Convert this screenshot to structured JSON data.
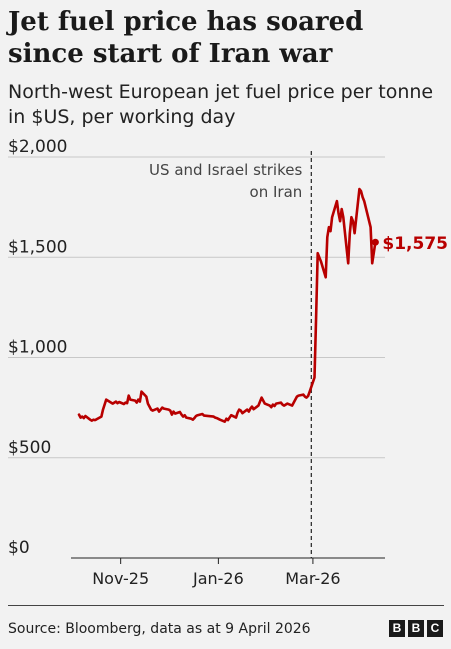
{
  "header": {
    "title": "Jet fuel price has soared since start of Iran war",
    "subtitle": "North-west European jet fuel price per tonne in $US, per working day"
  },
  "footer": {
    "source": "Source: Bloomberg, data as at 9 April 2026",
    "logo_letters": [
      "B",
      "B",
      "C"
    ]
  },
  "colors": {
    "line": "#b80000",
    "text": "#222222",
    "background": "#f2f2f2"
  },
  "chart_data": {
    "type": "line",
    "title": "Jet fuel price has soared since start of Iran war",
    "subtitle": "North-west European jet fuel price per tonne in $US, per working day",
    "ylim": [
      0,
      2000
    ],
    "y_ticks": [
      {
        "value": 0,
        "label": "$0"
      },
      {
        "value": 500,
        "label": "$500"
      },
      {
        "value": 1000,
        "label": "$1,000"
      },
      {
        "value": 1500,
        "label": "$1,500"
      },
      {
        "value": 2000,
        "label": "$2,000"
      }
    ],
    "x_ticks": [
      {
        "date": "2025-11-01",
        "label": "Nov-25"
      },
      {
        "date": "2026-01-01",
        "label": "Jan-26"
      },
      {
        "date": "2026-03-01",
        "label": "Mar-26"
      }
    ],
    "xlim": [
      "2025-10-01",
      "2026-04-15"
    ],
    "grid": "horizontal",
    "annotation": {
      "date": "2026-02-28",
      "text_lines": [
        "US and Israel strikes",
        "on Iran"
      ]
    },
    "last_value": {
      "date": "2026-04-09",
      "value": 1575,
      "label": "$1,575"
    },
    "series": [
      {
        "points": [
          [
            "2025-10-06",
            715
          ],
          [
            "2025-10-07",
            700
          ],
          [
            "2025-10-08",
            705
          ],
          [
            "2025-10-09",
            698
          ],
          [
            "2025-10-10",
            708
          ],
          [
            "2025-10-13",
            690
          ],
          [
            "2025-10-14",
            685
          ],
          [
            "2025-10-15",
            690
          ],
          [
            "2025-10-16",
            688
          ],
          [
            "2025-10-17",
            692
          ],
          [
            "2025-10-20",
            705
          ],
          [
            "2025-10-21",
            740
          ],
          [
            "2025-10-22",
            765
          ],
          [
            "2025-10-23",
            790
          ],
          [
            "2025-10-24",
            785
          ],
          [
            "2025-10-27",
            770
          ],
          [
            "2025-10-28",
            775
          ],
          [
            "2025-10-29",
            780
          ],
          [
            "2025-10-30",
            772
          ],
          [
            "2025-10-31",
            778
          ],
          [
            "2025-11-03",
            768
          ],
          [
            "2025-11-04",
            775
          ],
          [
            "2025-11-05",
            772
          ],
          [
            "2025-11-06",
            810
          ],
          [
            "2025-11-07",
            790
          ],
          [
            "2025-11-10",
            785
          ],
          [
            "2025-11-11",
            775
          ],
          [
            "2025-11-12",
            790
          ],
          [
            "2025-11-13",
            780
          ],
          [
            "2025-11-14",
            830
          ],
          [
            "2025-11-17",
            805
          ],
          [
            "2025-11-18",
            770
          ],
          [
            "2025-11-19",
            755
          ],
          [
            "2025-11-20",
            740
          ],
          [
            "2025-11-21",
            735
          ],
          [
            "2025-11-24",
            745
          ],
          [
            "2025-11-25",
            730
          ],
          [
            "2025-11-26",
            740
          ],
          [
            "2025-11-27",
            750
          ],
          [
            "2025-11-28",
            745
          ],
          [
            "2025-12-01",
            740
          ],
          [
            "2025-12-02",
            735
          ],
          [
            "2025-12-03",
            715
          ],
          [
            "2025-12-04",
            730
          ],
          [
            "2025-12-05",
            720
          ],
          [
            "2025-12-08",
            728
          ],
          [
            "2025-12-09",
            715
          ],
          [
            "2025-12-10",
            705
          ],
          [
            "2025-12-11",
            712
          ],
          [
            "2025-12-12",
            700
          ],
          [
            "2025-12-15",
            695
          ],
          [
            "2025-12-16",
            690
          ],
          [
            "2025-12-17",
            698
          ],
          [
            "2025-12-18",
            708
          ],
          [
            "2025-12-19",
            712
          ],
          [
            "2025-12-22",
            718
          ],
          [
            "2025-12-23",
            710
          ],
          [
            "2025-12-29",
            705
          ],
          [
            "2025-12-30",
            700
          ],
          [
            "2025-12-31",
            698
          ],
          [
            "2026-01-02",
            690
          ],
          [
            "2026-01-05",
            680
          ],
          [
            "2026-01-06",
            695
          ],
          [
            "2026-01-07",
            688
          ],
          [
            "2026-01-08",
            700
          ],
          [
            "2026-01-09",
            712
          ],
          [
            "2026-01-12",
            700
          ],
          [
            "2026-01-13",
            725
          ],
          [
            "2026-01-14",
            740
          ],
          [
            "2026-01-15",
            735
          ],
          [
            "2026-01-16",
            722
          ],
          [
            "2026-01-19",
            740
          ],
          [
            "2026-01-20",
            730
          ],
          [
            "2026-01-21",
            745
          ],
          [
            "2026-01-22",
            755
          ],
          [
            "2026-01-23",
            742
          ],
          [
            "2026-01-26",
            760
          ],
          [
            "2026-01-27",
            780
          ],
          [
            "2026-01-28",
            800
          ],
          [
            "2026-01-29",
            785
          ],
          [
            "2026-01-30",
            770
          ],
          [
            "2026-02-02",
            760
          ],
          [
            "2026-02-03",
            752
          ],
          [
            "2026-02-04",
            765
          ],
          [
            "2026-02-05",
            758
          ],
          [
            "2026-02-06",
            770
          ],
          [
            "2026-02-09",
            775
          ],
          [
            "2026-02-10",
            765
          ],
          [
            "2026-02-11",
            760
          ],
          [
            "2026-02-12",
            765
          ],
          [
            "2026-02-13",
            770
          ],
          [
            "2026-02-16",
            760
          ],
          [
            "2026-02-17",
            775
          ],
          [
            "2026-02-18",
            790
          ],
          [
            "2026-02-19",
            805
          ],
          [
            "2026-02-20",
            810
          ],
          [
            "2026-02-23",
            815
          ],
          [
            "2026-02-24",
            805
          ],
          [
            "2026-02-25",
            800
          ],
          [
            "2026-02-26",
            808
          ],
          [
            "2026-02-27",
            830
          ],
          [
            "2026-03-02",
            900
          ],
          [
            "2026-03-03",
            1200
          ],
          [
            "2026-03-04",
            1520
          ],
          [
            "2026-03-05",
            1500
          ],
          [
            "2026-03-06",
            1480
          ],
          [
            "2026-03-09",
            1400
          ],
          [
            "2026-03-10",
            1600
          ],
          [
            "2026-03-11",
            1650
          ],
          [
            "2026-03-12",
            1630
          ],
          [
            "2026-03-13",
            1700
          ],
          [
            "2026-03-16",
            1780
          ],
          [
            "2026-03-17",
            1720
          ],
          [
            "2026-03-18",
            1680
          ],
          [
            "2026-03-19",
            1740
          ],
          [
            "2026-03-20",
            1700
          ],
          [
            "2026-03-23",
            1470
          ],
          [
            "2026-03-24",
            1620
          ],
          [
            "2026-03-25",
            1700
          ],
          [
            "2026-03-26",
            1680
          ],
          [
            "2026-03-27",
            1620
          ],
          [
            "2026-03-30",
            1840
          ],
          [
            "2026-03-31",
            1830
          ],
          [
            "2026-04-01",
            1800
          ],
          [
            "2026-04-02",
            1780
          ],
          [
            "2026-04-06",
            1650
          ],
          [
            "2026-04-07",
            1470
          ],
          [
            "2026-04-09",
            1575
          ]
        ]
      }
    ]
  }
}
